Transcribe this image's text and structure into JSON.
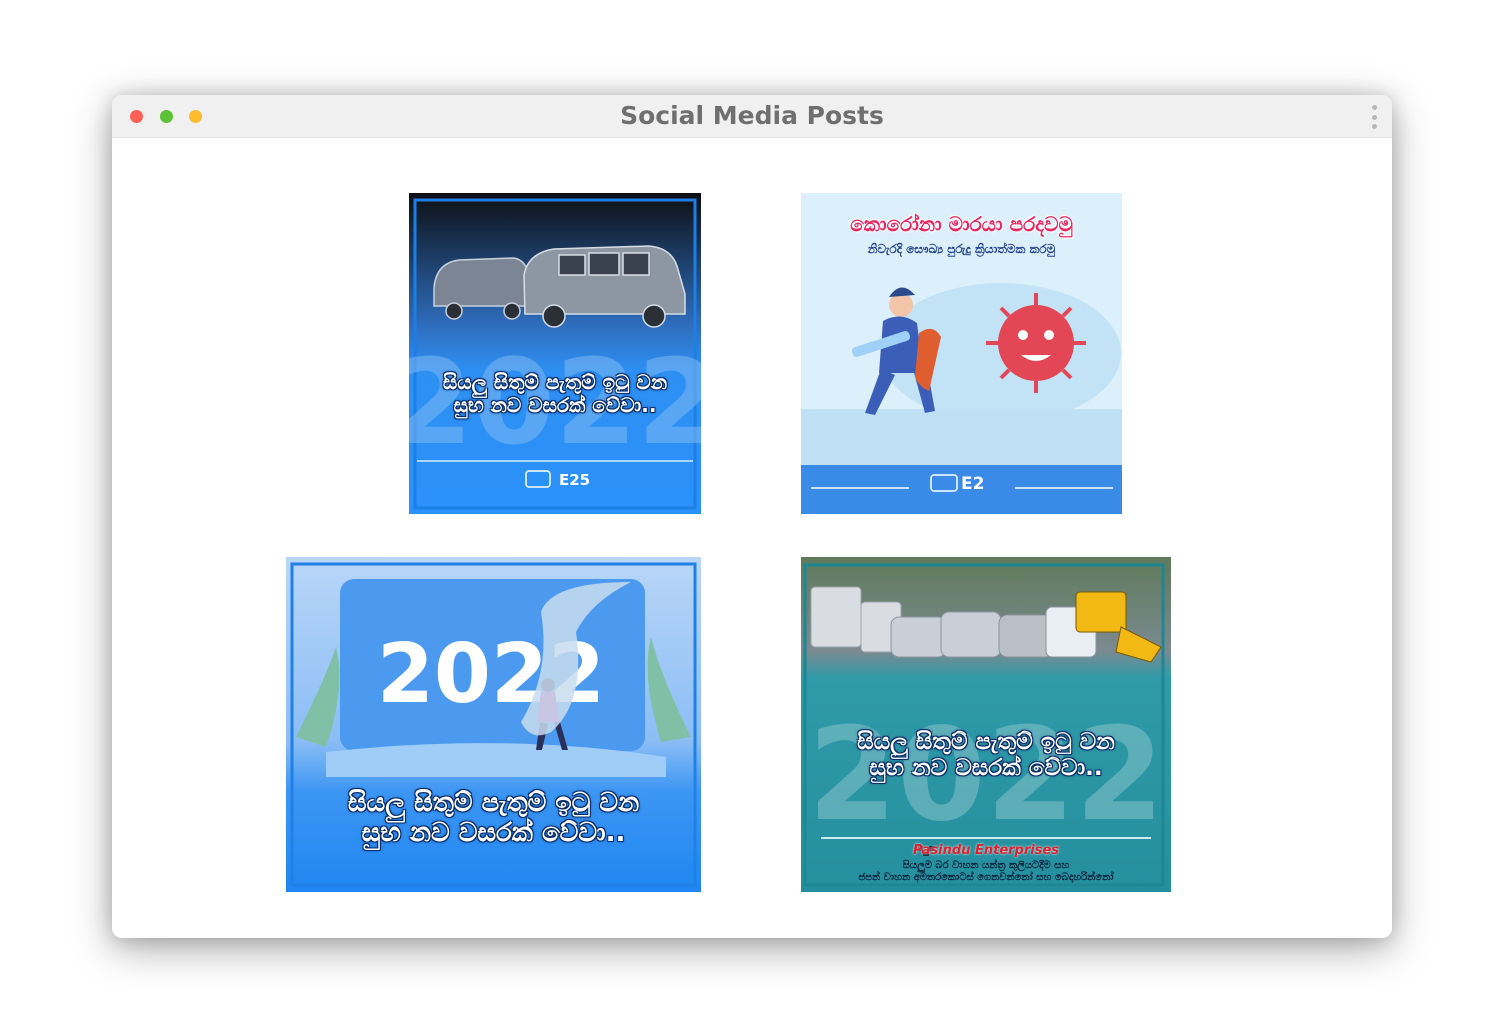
{
  "window": {
    "title": "Social Media Posts"
  },
  "posts": [
    {
      "big_year": "2022",
      "greeting_line1": "සියලු සිතුම් පැතුම් ඉටු වන",
      "greeting_line2": "සුභ නව වසරක් වේවා..",
      "logo_text": "E25"
    },
    {
      "headline": "කොරෝනා මාරයා පරදවමු",
      "subheadline": "නිවැරදි සෞඛ්‍ය පුරුදු ක්‍රියාත්මක කරමු",
      "logo_text": "E2"
    },
    {
      "big_year": "2022",
      "greeting_line1": "සියලු සිතුම් පැතුම් ඉටු වන",
      "greeting_line2": "සුභ නව වසරක් වේවා.."
    },
    {
      "big_year": "2022",
      "greeting_line1": "සියලු සිතුම් පැතුම් ඉටු වන",
      "greeting_line2": "සුභ නව වසරක් වේවා..",
      "brand": "Pasindu Enterprises",
      "tagline_line1": "සියලුම බර වාහන යන්ත්‍ර කුලියටදීම සහ",
      "tagline_line2": "ජපන් වාහන අමතරකොටස් ගෙනවන්නෝ සහ බෙදාහරින්නෝ"
    }
  ],
  "colors": {
    "titlebar_bg": "#f0f0f0",
    "title_text": "#6f6f6f",
    "close_dot": "#fe5f57",
    "zoom_dot": "#5bc236",
    "minimize_dot": "#fdbb2e",
    "post_blue": "#2f93f6",
    "post_teal": "#2a9aa8",
    "headline_red": "#e8265f"
  }
}
